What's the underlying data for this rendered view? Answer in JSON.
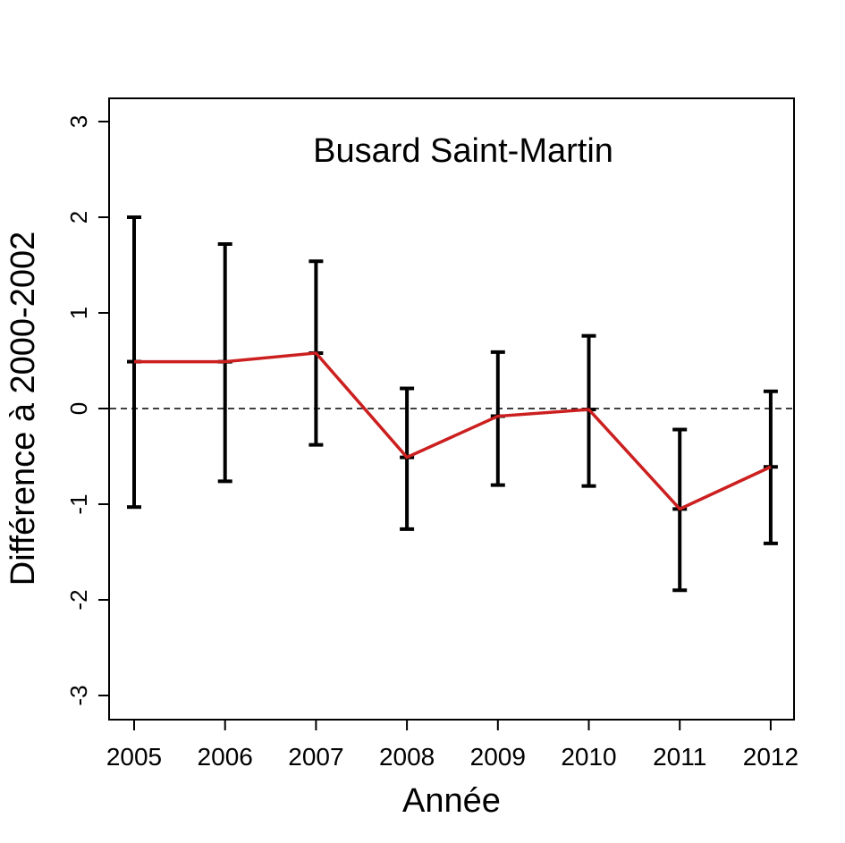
{
  "chart_data": {
    "type": "line",
    "title": "Busard Saint-Martin",
    "xlabel": "Année",
    "ylabel": "Différence à 2000-2002",
    "categories": [
      "2005",
      "2006",
      "2007",
      "2008",
      "2009",
      "2010",
      "2011",
      "2012"
    ],
    "series": [
      {
        "values": [
          0.49,
          0.49,
          0.58,
          -0.51,
          -0.08,
          -0.01,
          -1.05,
          -0.61
        ],
        "lower": [
          -1.03,
          -0.76,
          -0.38,
          -1.26,
          -0.8,
          -0.81,
          -1.9,
          -1.41
        ],
        "upper": [
          2.0,
          1.72,
          1.54,
          0.21,
          0.59,
          0.76,
          -0.22,
          0.18
        ],
        "color": "#cc1f1f",
        "error_bar_color": "#000000"
      }
    ],
    "yticks": [
      "-3",
      "-2",
      "-1",
      "0",
      "1",
      "2",
      "3"
    ],
    "ylim": [
      -3.25,
      3.25
    ],
    "reference_line": {
      "y": 0,
      "style": "dashed"
    },
    "grid": false,
    "legend": "none"
  }
}
